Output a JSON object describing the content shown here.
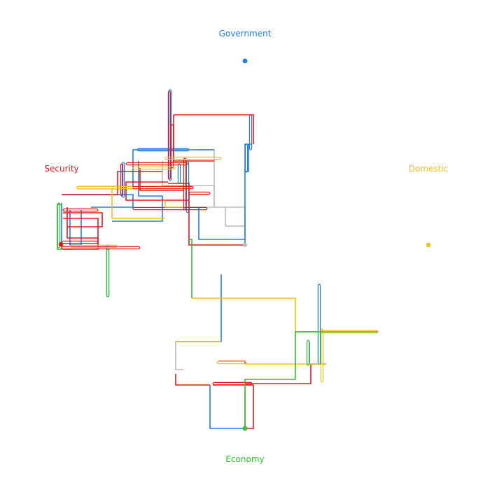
{
  "labels": {
    "top": "Government",
    "left": "Security",
    "right": "Domestic",
    "bottom": "Economy"
  },
  "colors": {
    "government": "#1E7FE8",
    "security": "#E41A1C",
    "domestic": "#F5C017",
    "economy": "#2BC42B",
    "neutral": "#BBBBBB"
  }
}
